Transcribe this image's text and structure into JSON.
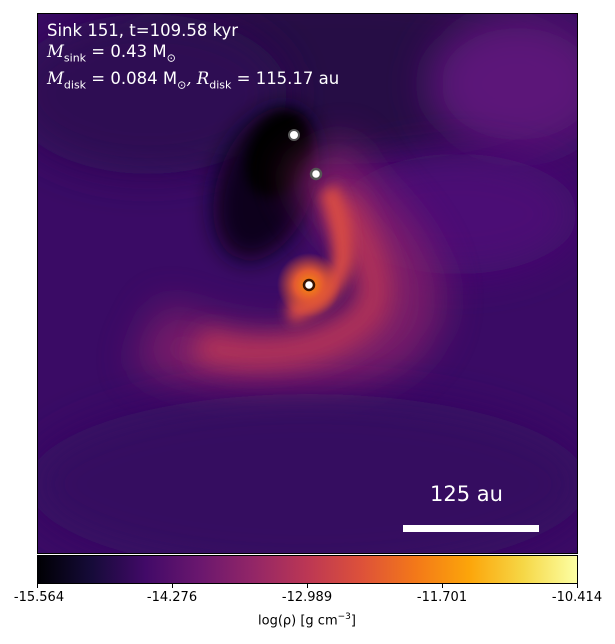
{
  "annotation": {
    "line1": "Sink 151, t=109.58 kyr",
    "mass_sink_label": "M",
    "mass_sink_sub": "sink",
    "mass_sink_value": " = 0.43 M",
    "mass_sink_sub2": "⊙",
    "mass_disk_label": "M",
    "mass_disk_sub": "disk",
    "mass_disk_value": " = 0.084 M",
    "mass_disk_sub2": "⊙",
    "radius_label": ", R",
    "radius_sub": "disk",
    "radius_value": " = 115.17 au"
  },
  "scalebar": {
    "label": "125 au"
  },
  "colorbar": {
    "ticks": [
      "-15.564",
      "-14.276",
      "-12.989",
      "-11.701",
      "-10.414"
    ],
    "label_main": "log(ρ) [g cm",
    "label_sup": "−3",
    "label_end": "]",
    "colormap": "inferno"
  },
  "sinks": [
    {
      "name": "sink-top",
      "style": "white-gray"
    },
    {
      "name": "sink-middle",
      "style": "white-gray"
    },
    {
      "name": "sink-central",
      "style": "white-orange"
    }
  ]
}
